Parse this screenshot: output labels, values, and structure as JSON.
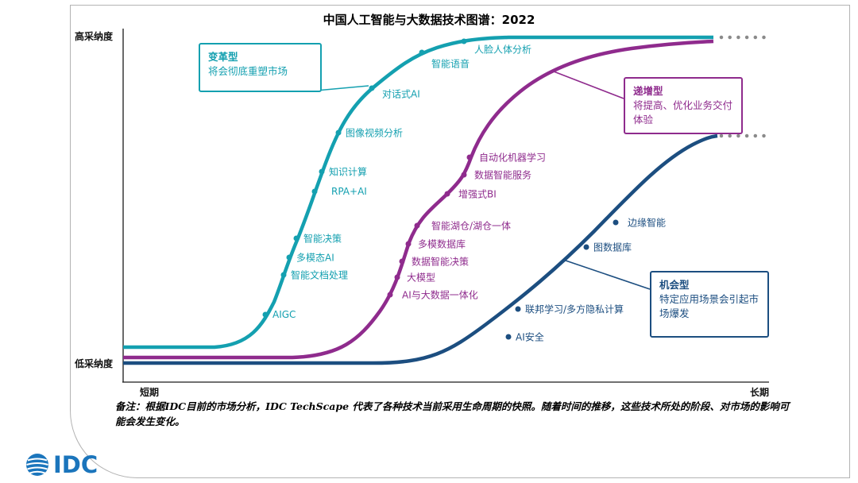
{
  "title": "中国人工智能与大数据技术图谱：2022",
  "axes": {
    "y_top": "高采纳度",
    "y_bottom": "低采纳度",
    "x_left": "短期",
    "x_right": "长期"
  },
  "colors": {
    "teal": "#14a0b0",
    "purple": "#8f2b8d",
    "blue": "#1c4e80",
    "trail_gray": "#8a8a8a",
    "logo_blue": "#1b75bc"
  },
  "callouts": [
    {
      "title": "变革型",
      "desc": "将会彻底重塑市场"
    },
    {
      "title": "递增型",
      "desc": "将提高、优化业务交付体验"
    },
    {
      "title": "机会型",
      "desc": "特定应用场景会引起市场爆发"
    }
  ],
  "note": "备注：根据IDC目前的市场分析，IDC TechScape 代表了各种技术当前采用生命周期的快照。随着时间的推移，这些技术所处的阶段、对市场的影响可能会发生变化。",
  "logo_text": "IDC",
  "chart_data": {
    "type": "line",
    "title": "中国人工智能与大数据技术图谱：2022",
    "x_axis": {
      "left": "短期",
      "right": "长期"
    },
    "y_axis": {
      "top": "高采纳度",
      "bottom": "低采纳度"
    },
    "legend_position": "callout boxes on plot",
    "series": [
      {
        "key": "teal",
        "name": "变革型：将会彻底重塑市场",
        "color": "#14a0b0",
        "items": [
          {
            "label": "AIGC",
            "x": 334,
            "y": 396
          },
          {
            "label": "智能文档处理",
            "x": 357,
            "y": 346
          },
          {
            "label": "多模态AI",
            "x": 364,
            "y": 324
          },
          {
            "label": "智能决策",
            "x": 373,
            "y": 300
          },
          {
            "label": "RPA+AI",
            "x": 396,
            "y": 241,
            "lx": 417
          },
          {
            "label": "知识计算",
            "x": 405,
            "y": 216
          },
          {
            "label": "图像视频分析",
            "x": 426,
            "y": 167
          },
          {
            "label": "对话式AI",
            "x": 468,
            "y": 111,
            "lx": 481,
            "ly": 118
          },
          {
            "label": "智能语音",
            "x": 531,
            "y": 66,
            "lx": 543,
            "ly": 80
          },
          {
            "label": "人脸人体分析",
            "x": 584,
            "y": 52,
            "lx": 597,
            "ly": 62
          }
        ]
      },
      {
        "key": "purple",
        "name": "递增型：将提高、优化业务交付体验",
        "color": "#8f2b8d",
        "items": [
          {
            "label": "AI与大数据一体化",
            "x": 491,
            "y": 371,
            "lx": 506
          },
          {
            "label": "大模型",
            "x": 500,
            "y": 349,
            "lx": 512
          },
          {
            "label": "数据智能决策",
            "x": 506,
            "y": 329,
            "lx": 518
          },
          {
            "label": "多模数据库",
            "x": 514,
            "y": 307,
            "lx": 526
          },
          {
            "label": "智能湖仓/湖仓一体",
            "x": 525,
            "y": 284,
            "lx": 543
          },
          {
            "label": "增强式BI",
            "x": 563,
            "y": 244,
            "lx": 577
          },
          {
            "label": "数据智能服务",
            "x": 584,
            "y": 220,
            "lx": 597
          },
          {
            "label": "自动化机器学习",
            "x": 591,
            "y": 198,
            "lx": 603
          }
        ]
      },
      {
        "key": "blue",
        "name": "机会型：特定应用场景会引起市场爆发",
        "color": "#1c4e80",
        "items": [
          {
            "label": "AI安全",
            "x": 640,
            "y": 424
          },
          {
            "label": "联邦学习/多方隐私计算",
            "x": 652,
            "y": 389
          },
          {
            "label": "图数据库",
            "x": 738,
            "y": 311
          },
          {
            "label": "边缘智能",
            "x": 775,
            "y": 280,
            "lx": 790
          }
        ]
      }
    ]
  }
}
